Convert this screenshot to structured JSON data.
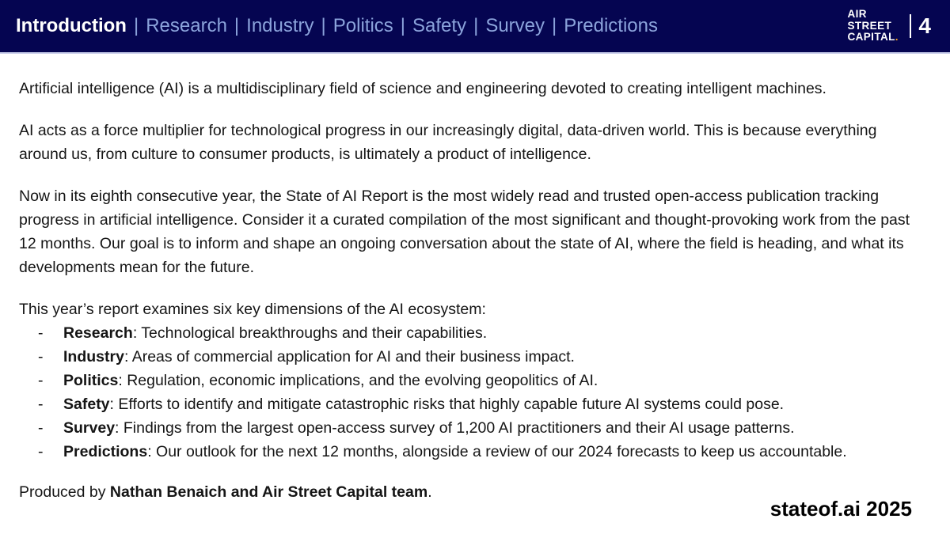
{
  "header": {
    "nav": {
      "separator": "|",
      "items": [
        {
          "label": "Introduction"
        },
        {
          "label": "Research"
        },
        {
          "label": "Industry"
        },
        {
          "label": "Politics"
        },
        {
          "label": "Safety"
        },
        {
          "label": "Survey"
        },
        {
          "label": "Predictions"
        }
      ]
    },
    "logo": {
      "line1": "AIR",
      "line2": "STREET",
      "line3": "CAPITAL",
      "dot": "."
    },
    "page_number": "4"
  },
  "content": {
    "paragraphs": [
      "Artificial intelligence (AI) is a multidisciplinary field of science and engineering devoted to creating intelligent machines.",
      "AI acts as a force multiplier for technological progress in our increasingly digital, data-driven world. This is because everything around us, from culture to consumer products, is ultimately a product of intelligence.",
      "Now in its eighth consecutive year, the State of AI Report is the most widely read and trusted open-access publication tracking progress in artificial intelligence. Consider it a curated compilation of the most significant and thought-provoking work from the past 12 months. Our goal is to inform and shape an ongoing conversation about the state of AI, where the field is heading, and what its developments mean for the future.",
      "This year’s report examines six key dimensions of the AI ecosystem:"
    ],
    "list": {
      "bullet": "-",
      "items": [
        {
          "term": "Research",
          "desc": ": Technological breakthroughs and their capabilities."
        },
        {
          "term": "Industry",
          "desc": ": Areas of commercial application for AI and their business impact."
        },
        {
          "term": "Politics",
          "desc": ": Regulation, economic implications, and the evolving geopolitics of AI."
        },
        {
          "term": "Safety",
          "desc": ": Efforts to identify and mitigate catastrophic risks that highly capable future AI systems could pose."
        },
        {
          "term": "Survey",
          "desc": ": Findings from the largest open-access survey of 1,200 AI practitioners and their AI usage patterns."
        },
        {
          "term": "Predictions",
          "desc": ": Our outlook for the next 12 months, alongside a review of our 2024 forecasts to keep us accountable."
        }
      ]
    },
    "produced_by": {
      "prefix": "Produced by ",
      "names": "Nathan Benaich and Air Street Capital team",
      "suffix": "."
    },
    "brand": "stateof.ai 2025"
  },
  "colors": {
    "header_bg": "#050551",
    "nav_link": "#8BA3DB",
    "nav_active": "#FFFFFF",
    "header_border": "#C8CDEA",
    "accent_orange": "#F6A01A",
    "body_text": "#151515"
  }
}
